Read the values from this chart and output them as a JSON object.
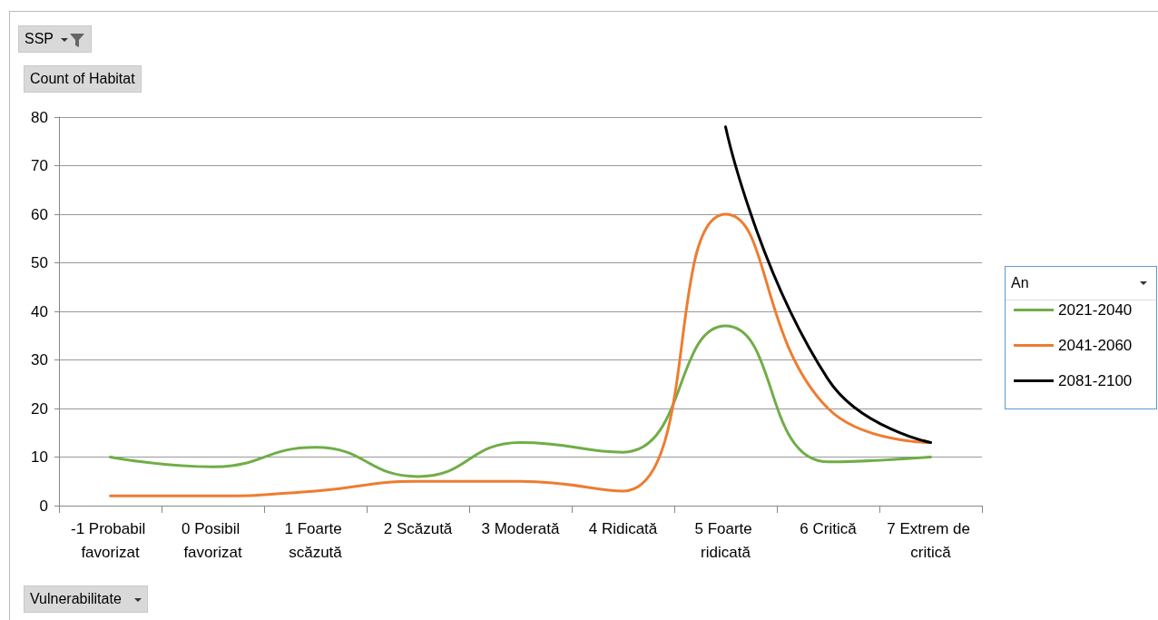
{
  "chart_data": {
    "type": "line",
    "ylabel": "Count of Habitat",
    "xlabel": "Vulnerabilitate",
    "legend_title": "An",
    "annotations": [
      "SSP"
    ],
    "categories": [
      "-1 Probabil favorizat",
      "0 Posibil favorizat",
      "1 Foarte scăzută",
      "2 Scăzută",
      "3 Moderată",
      "4 Ridicată",
      "5 Foarte ridicată",
      "6 Critică",
      "7 Extrem de critică"
    ],
    "series": [
      {
        "name": "2021-2040",
        "color": "#70ad47",
        "values": [
          10,
          8,
          12,
          6,
          13,
          11,
          37,
          9,
          10
        ]
      },
      {
        "name": "2041-2060",
        "color": "#ed7d31",
        "values": [
          2,
          2,
          3,
          5,
          5,
          3,
          60,
          20,
          13
        ]
      },
      {
        "name": "2081-2100",
        "color": "#000000",
        "values": [
          null,
          null,
          null,
          null,
          null,
          null,
          78,
          26,
          13
        ]
      }
    ],
    "ylim": [
      0,
      80
    ],
    "yticks": [
      0,
      10,
      20,
      30,
      40,
      50,
      60,
      70,
      80
    ],
    "grid": "y",
    "legend": "right",
    "marker": "none",
    "line_style": "solid"
  }
}
